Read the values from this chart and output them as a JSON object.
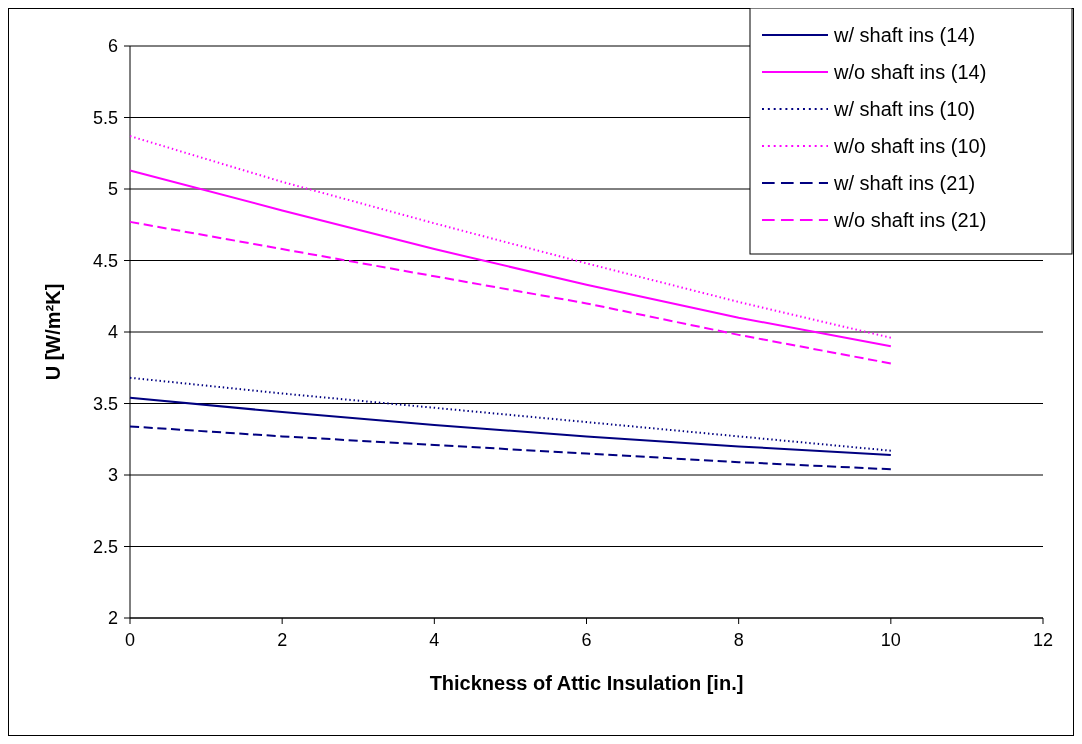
{
  "chart_data": {
    "type": "line",
    "xlabel": "Thickness of Attic Insulation [in.]",
    "ylabel": "U [W/m²K]",
    "x": [
      0,
      2,
      4,
      6,
      8,
      10
    ],
    "xlim": [
      0,
      12
    ],
    "xticks": [
      0,
      2,
      4,
      6,
      8,
      10,
      12
    ],
    "ylim": [
      2,
      6
    ],
    "yticks": [
      2,
      2.5,
      3,
      3.5,
      4,
      4.5,
      5,
      5.5,
      6
    ],
    "grid": "y",
    "legend": "top right",
    "marker": "none",
    "series": [
      {
        "name": "w/ shaft ins (14)",
        "color": "#000080",
        "line_style": "solid",
        "values": [
          3.54,
          3.44,
          3.35,
          3.27,
          3.2,
          3.14
        ]
      },
      {
        "name": "w/o shaft ins (14)",
        "color": "#ff00ff",
        "line_style": "solid",
        "values": [
          5.13,
          4.85,
          4.58,
          4.33,
          4.1,
          3.9
        ]
      },
      {
        "name": "w/ shaft ins (10)",
        "color": "#000080",
        "line_style": "dotted",
        "values": [
          3.68,
          3.57,
          3.47,
          3.37,
          3.27,
          3.17
        ]
      },
      {
        "name": "w/o shaft ins (10)",
        "color": "#ff00ff",
        "line_style": "dotted",
        "values": [
          5.37,
          5.05,
          4.76,
          4.48,
          4.21,
          3.96
        ]
      },
      {
        "name": "w/ shaft ins (21)",
        "color": "#000080",
        "line_style": "dashed",
        "values": [
          3.34,
          3.27,
          3.21,
          3.15,
          3.09,
          3.04
        ]
      },
      {
        "name": "w/o shaft ins (21)",
        "color": "#ff00ff",
        "line_style": "dashed",
        "values": [
          4.77,
          4.58,
          4.39,
          4.2,
          3.98,
          3.78
        ]
      }
    ]
  }
}
